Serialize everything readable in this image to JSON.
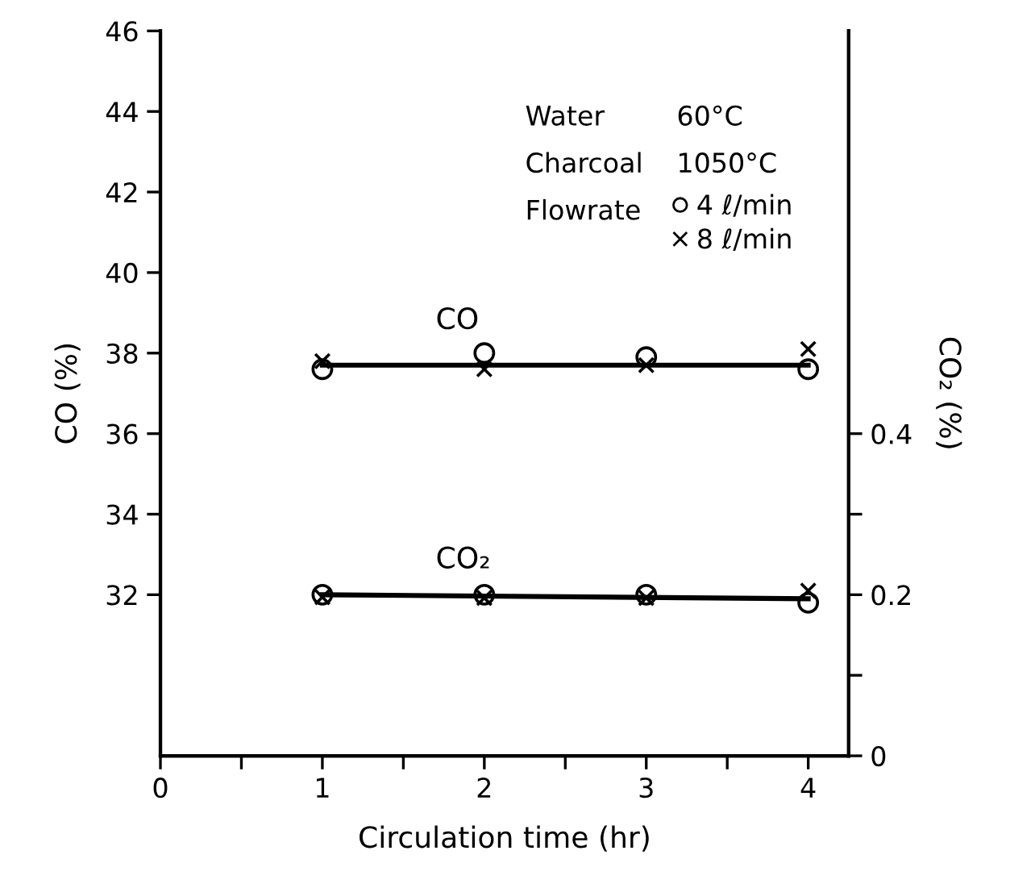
{
  "chart_data": {
    "type": "scatter",
    "xlabel": "Circulation time (hr)",
    "ylabel": "CO (%)",
    "y2label": "CO₂ (%)",
    "xlim": [
      0,
      4.25
    ],
    "xticks": [
      0,
      {
        "value": 0.5,
        "label": null
      },
      1,
      {
        "value": 1.5,
        "label": null
      },
      2,
      {
        "value": 2.5,
        "label": null
      },
      3,
      {
        "value": 3.5,
        "label": null
      },
      4
    ],
    "ylim": [
      28,
      46
    ],
    "yticks": [
      32,
      34,
      36,
      38,
      40,
      42,
      44,
      46
    ],
    "y2lim": [
      0,
      0.9
    ],
    "y2ticks": [
      0,
      {
        "value": 0.1,
        "label": null
      },
      0.2,
      {
        "value": 0.3,
        "label": null
      },
      0.4
    ],
    "grid": false,
    "legend": "top right",
    "series": [
      {
        "name": "4 ℓ/min",
        "marker": "circle",
        "color": "#000000",
        "x": [
          1,
          2,
          3,
          4
        ],
        "values": [
          37.6,
          38.0,
          37.9,
          37.6
        ]
      },
      {
        "name": "8 ℓ/min",
        "marker": "cross",
        "color": "#000000",
        "x": [
          1,
          2,
          3,
          4
        ],
        "values": [
          37.8,
          37.6,
          37.7,
          38.1
        ]
      },
      {
        "type": "line",
        "marker": "none",
        "line_style": "solid",
        "color": "#000000",
        "x": [
          1,
          4
        ],
        "values": [
          37.7,
          37.7
        ]
      },
      {
        "marker": "circle",
        "color": "#000000",
        "axis": "y2",
        "x": [
          1,
          2,
          3,
          4
        ],
        "values": [
          0.2,
          0.2,
          0.2,
          0.19
        ]
      },
      {
        "marker": "cross",
        "color": "#000000",
        "axis": "y2",
        "x": [
          1,
          2,
          3,
          4
        ],
        "values": [
          0.197,
          0.196,
          0.196,
          0.205
        ]
      },
      {
        "type": "line",
        "marker": "none",
        "line_style": "solid",
        "color": "#000000",
        "axis": "y2",
        "x": [
          1,
          4
        ],
        "values": [
          0.2,
          0.195
        ]
      }
    ],
    "annotations": [
      "Water",
      "60°C",
      "Charcoal",
      "1050°C",
      "Flowrate",
      "CO",
      "CO₂"
    ]
  }
}
